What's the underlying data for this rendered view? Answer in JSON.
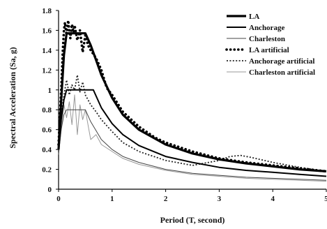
{
  "chart_data": {
    "type": "line",
    "xlabel": "Period (T, second)",
    "ylabel": "Spectral Acceleration  (Sa, g)",
    "xlim": [
      0,
      5
    ],
    "ylim": [
      0,
      1.8
    ],
    "x_ticks": [
      "0",
      "1",
      "2",
      "3",
      "4",
      "5"
    ],
    "y_ticks": [
      "0",
      "0.2",
      "0.4",
      "0.6",
      "0.8",
      "1",
      "1.2",
      "1.4",
      "1.6",
      "1.8"
    ],
    "grid": false,
    "legend_position": "top-right",
    "series": [
      {
        "name": "LA",
        "color": "#000000",
        "style": "solid-thick",
        "x": [
          0,
          0.05,
          0.1,
          0.15,
          0.5,
          0.6,
          0.7,
          0.8,
          1.0,
          1.2,
          1.5,
          2.0,
          2.5,
          3.0,
          3.5,
          4.0,
          4.5,
          5.0
        ],
        "y": [
          0.4,
          0.9,
          1.35,
          1.57,
          1.57,
          1.45,
          1.3,
          1.15,
          0.92,
          0.75,
          0.6,
          0.45,
          0.36,
          0.3,
          0.26,
          0.23,
          0.2,
          0.18
        ]
      },
      {
        "name": "Anchorage",
        "color": "#000000",
        "style": "solid",
        "x": [
          0,
          0.05,
          0.1,
          0.15,
          0.65,
          0.8,
          1.0,
          1.2,
          1.5,
          2.0,
          2.5,
          3.0,
          3.5,
          4.0,
          4.5,
          5.0
        ],
        "y": [
          0.4,
          0.7,
          0.9,
          1.0,
          1.0,
          0.82,
          0.66,
          0.55,
          0.44,
          0.33,
          0.27,
          0.22,
          0.19,
          0.17,
          0.15,
          0.13
        ]
      },
      {
        "name": "Charleston",
        "color": "#444444",
        "style": "thin",
        "x": [
          0,
          0.05,
          0.1,
          0.15,
          0.5,
          0.6,
          0.8,
          1.0,
          1.2,
          1.5,
          2.0,
          2.5,
          3.0,
          3.5,
          4.0,
          4.5,
          5.0
        ],
        "y": [
          0.35,
          0.6,
          0.75,
          0.8,
          0.8,
          0.68,
          0.5,
          0.4,
          0.33,
          0.27,
          0.2,
          0.16,
          0.14,
          0.12,
          0.11,
          0.1,
          0.09
        ]
      },
      {
        "name": "LA artificial",
        "color": "#000000",
        "style": "dotted-heavy",
        "x": [
          0,
          0.05,
          0.08,
          0.1,
          0.12,
          0.15,
          0.18,
          0.2,
          0.22,
          0.25,
          0.28,
          0.3,
          0.35,
          0.4,
          0.45,
          0.5,
          0.55,
          0.6,
          0.7,
          0.8,
          0.9,
          1.0,
          1.2,
          1.5,
          1.8,
          2.0,
          2.5,
          3.0,
          3.5,
          4.0,
          4.5,
          5.0
        ],
        "y": [
          0.45,
          1.0,
          1.4,
          1.6,
          1.68,
          1.55,
          1.7,
          1.6,
          1.52,
          1.66,
          1.58,
          1.65,
          1.5,
          1.6,
          1.38,
          1.55,
          1.45,
          1.4,
          1.32,
          1.2,
          1.02,
          0.95,
          0.78,
          0.63,
          0.52,
          0.47,
          0.38,
          0.31,
          0.27,
          0.24,
          0.21,
          0.18
        ]
      },
      {
        "name": "Anchorage artificial",
        "color": "#222222",
        "style": "dotted",
        "x": [
          0,
          0.05,
          0.1,
          0.15,
          0.2,
          0.25,
          0.3,
          0.35,
          0.4,
          0.45,
          0.5,
          0.6,
          0.7,
          0.8,
          1.0,
          1.2,
          1.5,
          2.0,
          2.5,
          3.0,
          3.2,
          3.4,
          3.6,
          4.0,
          4.5,
          5.0
        ],
        "y": [
          0.4,
          0.75,
          0.95,
          1.1,
          0.95,
          1.05,
          1.0,
          1.15,
          0.98,
          1.08,
          0.95,
          0.85,
          0.78,
          0.7,
          0.58,
          0.47,
          0.38,
          0.29,
          0.24,
          0.29,
          0.33,
          0.34,
          0.32,
          0.27,
          0.22,
          0.18
        ]
      },
      {
        "name": "Charleston artificial",
        "color": "#999999",
        "style": "thin-gray",
        "x": [
          0,
          0.05,
          0.08,
          0.1,
          0.15,
          0.2,
          0.25,
          0.3,
          0.35,
          0.4,
          0.45,
          0.5,
          0.55,
          0.6,
          0.7,
          0.8,
          1.0,
          1.2,
          1.5,
          2.0,
          2.5,
          3.0,
          3.5,
          4.0,
          4.5,
          5.0
        ],
        "y": [
          0.35,
          0.6,
          0.75,
          0.85,
          0.72,
          0.88,
          0.65,
          0.95,
          0.55,
          0.85,
          0.7,
          0.8,
          0.65,
          0.5,
          0.55,
          0.45,
          0.38,
          0.31,
          0.25,
          0.19,
          0.15,
          0.13,
          0.11,
          0.1,
          0.09,
          0.08
        ]
      }
    ]
  }
}
